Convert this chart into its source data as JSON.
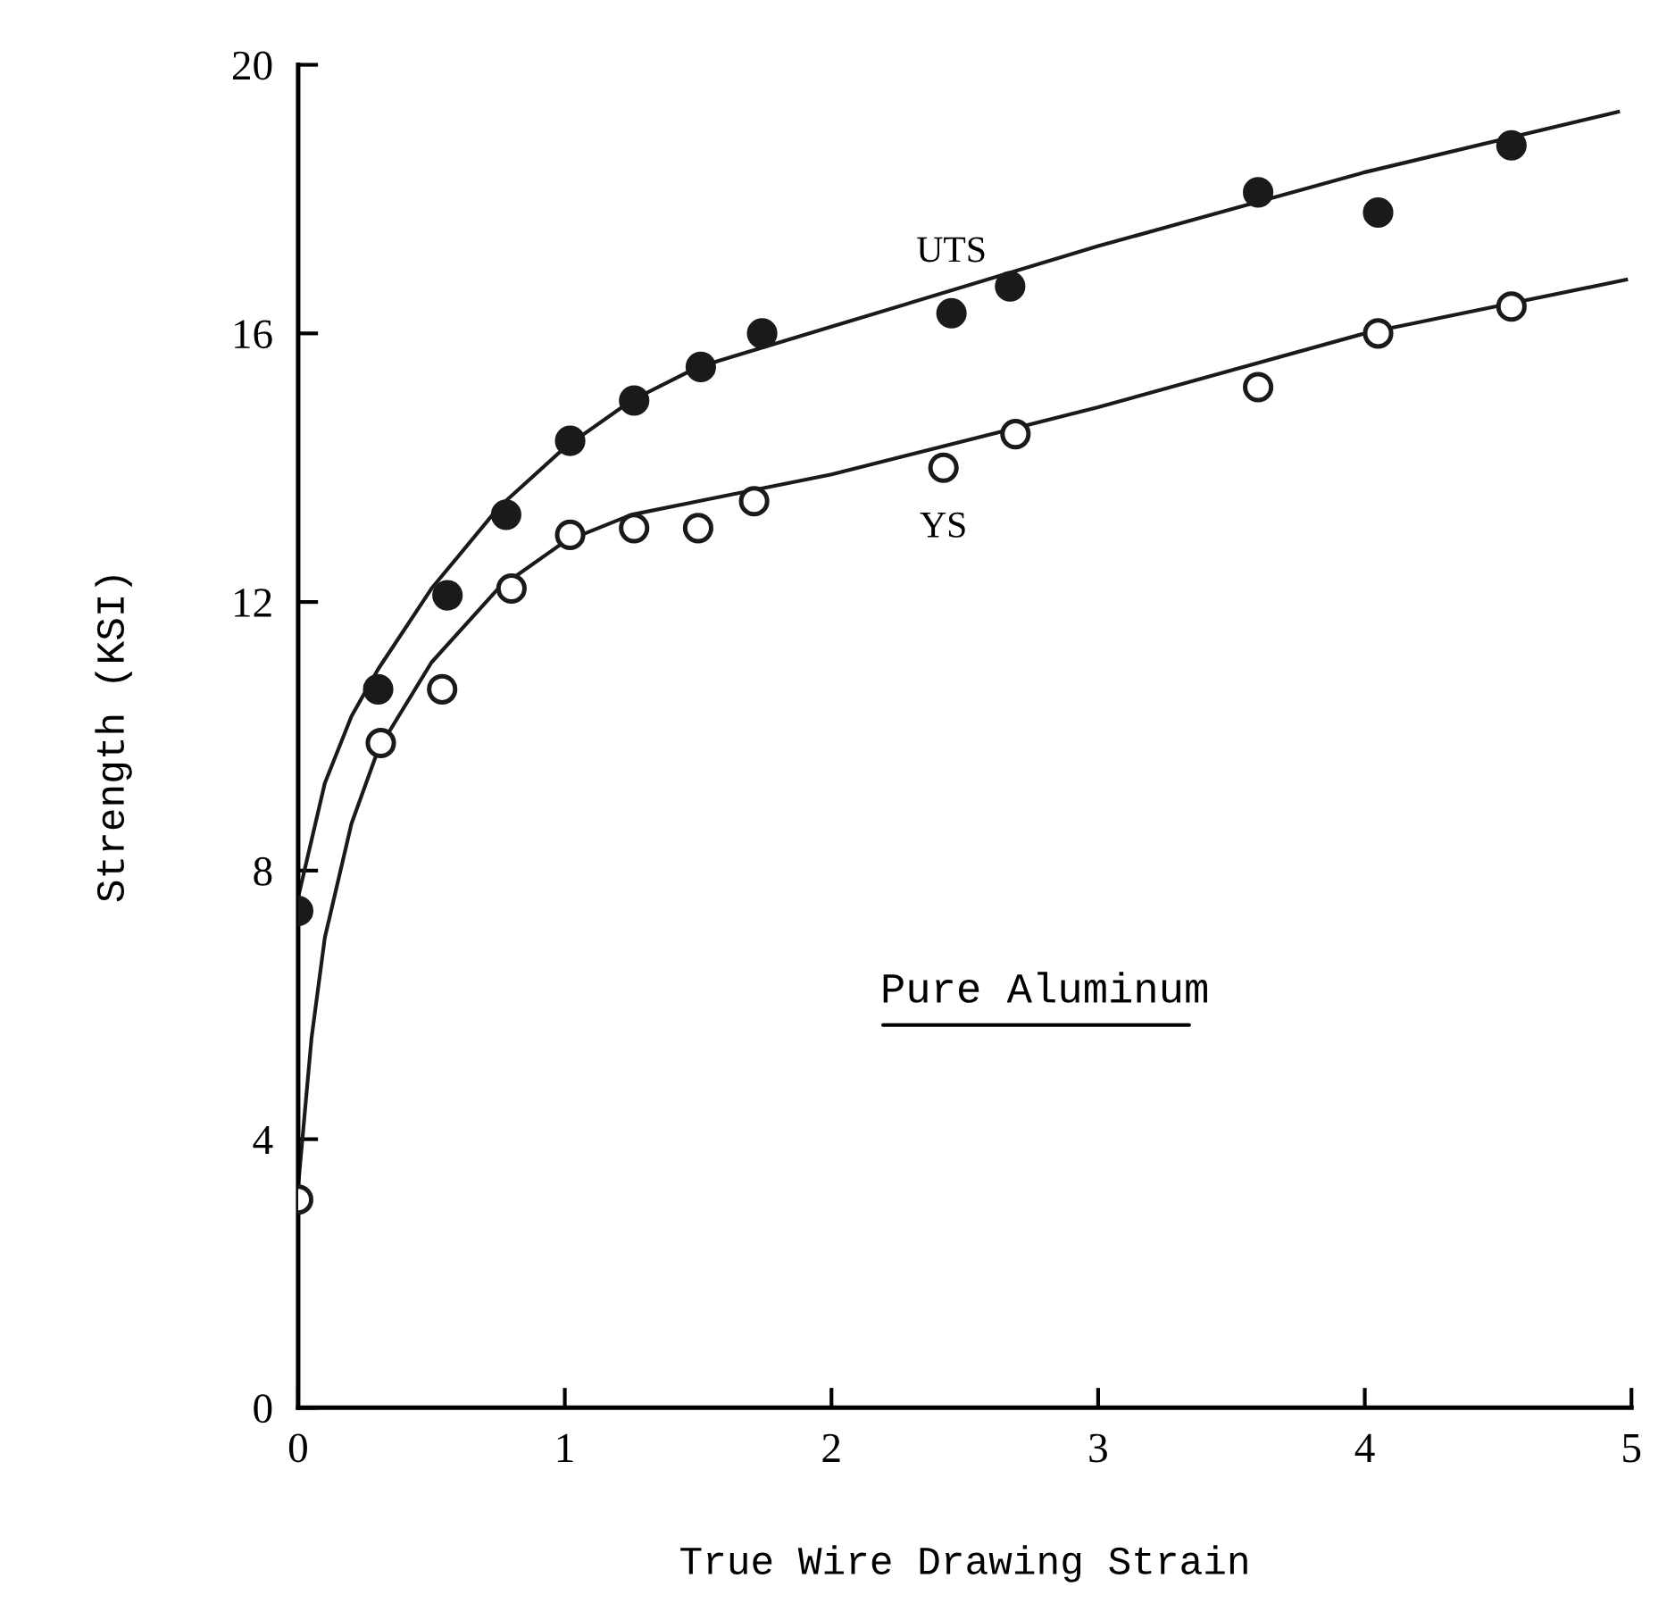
{
  "chart_data": {
    "type": "scatter",
    "xlabel": "True Wire Drawing Strain",
    "ylabel": "Strength (KSI)",
    "xlim": [
      0,
      5
    ],
    "xticks": [
      0,
      1,
      2,
      3,
      4,
      5
    ],
    "ylim": [
      0,
      20
    ],
    "yticks": [
      0,
      4,
      8,
      12,
      16,
      20
    ],
    "grid": false,
    "legend": false,
    "marker": "circle",
    "series": [
      {
        "name": "UTS",
        "color": "#1a1a1a",
        "x": [
          0,
          0.3,
          0.56,
          0.78,
          1.02,
          1.26,
          1.51,
          1.74,
          2.45,
          2.67,
          3.6,
          4.05,
          4.55
        ],
        "values": [
          7.4,
          10.7,
          12.1,
          13.3,
          14.4,
          15.0,
          15.5,
          16.0,
          16.3,
          16.7,
          18.1,
          17.8,
          18.8
        ]
      },
      {
        "name": "YS",
        "color": "#ffffff",
        "x": [
          0,
          0.31,
          0.54,
          0.8,
          1.02,
          1.26,
          1.5,
          1.71,
          2.42,
          2.69,
          3.6,
          4.05,
          4.55
        ],
        "values": [
          3.1,
          9.9,
          10.7,
          12.2,
          13.0,
          13.1,
          13.1,
          13.5,
          14.0,
          14.5,
          15.2,
          16.0,
          16.4
        ]
      },
      {
        "type": "line",
        "color": "#1a1a1a",
        "marker": "none",
        "x": [
          0,
          0.1,
          0.2,
          0.3,
          0.5,
          0.75,
          1.0,
          1.25,
          1.5,
          2,
          3,
          4,
          4.95
        ],
        "values": [
          7.6,
          9.3,
          10.3,
          11.0,
          12.2,
          13.4,
          14.3,
          15.0,
          15.5,
          16.1,
          17.3,
          18.4,
          19.3
        ]
      },
      {
        "type": "line",
        "color": "#1a1a1a",
        "marker": "none",
        "x": [
          0,
          0.05,
          0.1,
          0.2,
          0.3,
          0.5,
          0.75,
          1.0,
          1.25,
          1.5,
          2,
          3,
          4,
          4.98
        ],
        "values": [
          3.3,
          5.5,
          7.0,
          8.7,
          9.8,
          11.1,
          12.2,
          12.9,
          13.3,
          13.5,
          13.9,
          14.9,
          16.0,
          16.8
        ]
      }
    ],
    "annotations": [
      "Pure Aluminum"
    ]
  }
}
